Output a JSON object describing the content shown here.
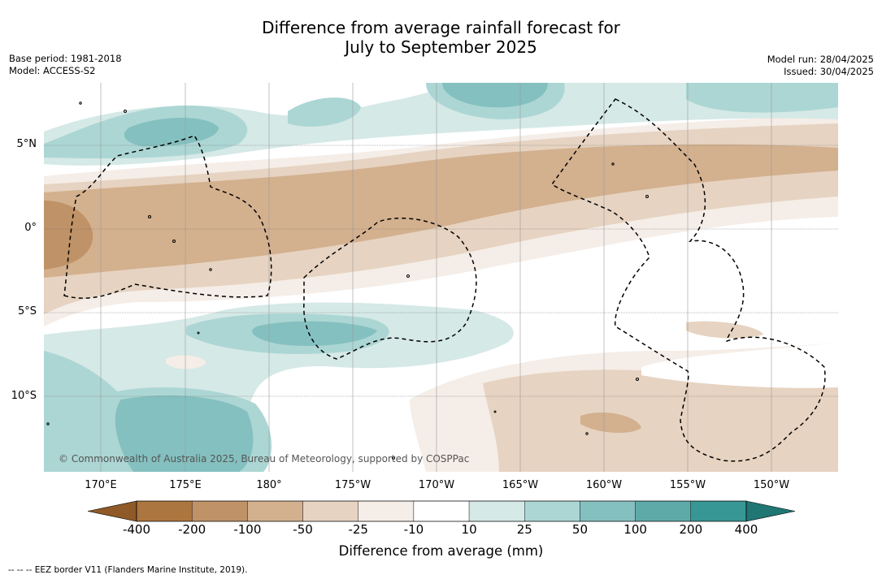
{
  "title_line1": "Difference from average rainfall forecast for",
  "title_line2": "July to September 2025",
  "meta_left": {
    "base_period": "Base period: 1981-2018",
    "model": "Model: ACCESS-S2"
  },
  "meta_right": {
    "model_run": "Model run: 28/04/2025",
    "issued": "Issued: 30/04/2025"
  },
  "copyright": "© Commonwealth of Australia 2025, Bureau of Meteorology, supported by COSPPac",
  "lat_labels": [
    "5°N",
    "0°",
    "5°S",
    "10°S"
  ],
  "lon_labels": [
    "170°E",
    "175°E",
    "180°",
    "175°W",
    "170°W",
    "165°W",
    "160°W",
    "155°W",
    "150°W"
  ],
  "colorbar": {
    "label": "Difference from average (mm)",
    "ticks": [
      "-400",
      "-200",
      "-100",
      "-50",
      "-25",
      "-10",
      "10",
      "25",
      "50",
      "100",
      "200",
      "400"
    ],
    "colors": [
      "#8f5a28",
      "#ab763f",
      "#bf9267",
      "#d3b08e",
      "#e6d3c1",
      "#f5ede7",
      "#ffffff",
      "#d5e9e7",
      "#acd6d4",
      "#84c0bf",
      "#5eaaa9",
      "#379795",
      "#1f7673"
    ]
  },
  "eez_note": "--  --  -- EEZ border V11 (Flanders Marine Institute, 2019)."
}
